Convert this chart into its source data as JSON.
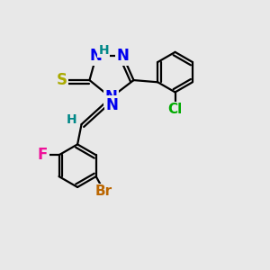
{
  "bg_color": "#e8e8e8",
  "atom_colors": {
    "N": "#0000ee",
    "S": "#aaaa00",
    "H_label": "#008888",
    "Cl": "#00aa00",
    "F": "#ee1199",
    "Br": "#bb6600",
    "C": "#000000"
  },
  "bond_color": "#000000",
  "bond_width": 1.6,
  "font_size_atoms": 12,
  "font_size_h": 10
}
